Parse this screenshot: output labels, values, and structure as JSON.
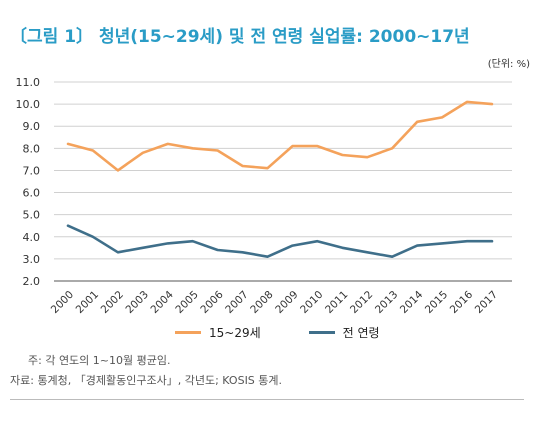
{
  "title": "〔그림 1〕 청년(15~29세) 및 전 연령 실업률: 2000~17년",
  "unit": "(단위: %)",
  "note": "주: 각 연도의 1~10월 평균임.",
  "source": "자료: 통계청, 「경제활동인구조사」, 각년도; KOSIS 통계.",
  "chart_data": {
    "type": "line",
    "title": "〔그림 1〕 청년(15~29세) 및 전 연령 실업률: 2000~17년",
    "xlabel": "",
    "ylabel": "",
    "ylim": [
      2.0,
      11.0
    ],
    "yticks": [
      "2.0",
      "3.0",
      "4.0",
      "5.0",
      "6.0",
      "7.0",
      "8.0",
      "9.0",
      "10.0",
      "11.0"
    ],
    "grid": true,
    "legend_position": "bottom",
    "x": [
      "2000",
      "2001",
      "2002",
      "2003",
      "2004",
      "2005",
      "2006",
      "2007",
      "2008",
      "2009",
      "2010",
      "2011",
      "2012",
      "2013",
      "2014",
      "2015",
      "2016",
      "2017"
    ],
    "series": [
      {
        "name": "15~29세",
        "color": "#f4a25b",
        "values": [
          8.2,
          7.9,
          7.0,
          7.8,
          8.2,
          8.0,
          7.9,
          7.2,
          7.1,
          8.1,
          8.1,
          7.7,
          7.6,
          8.0,
          9.2,
          9.4,
          10.1,
          10.0
        ]
      },
      {
        "name": "전 연령",
        "color": "#3f6f8a",
        "values": [
          4.5,
          4.0,
          3.3,
          3.5,
          3.7,
          3.8,
          3.4,
          3.3,
          3.1,
          3.6,
          3.8,
          3.5,
          3.3,
          3.1,
          3.6,
          3.7,
          3.8,
          3.8
        ]
      }
    ]
  }
}
